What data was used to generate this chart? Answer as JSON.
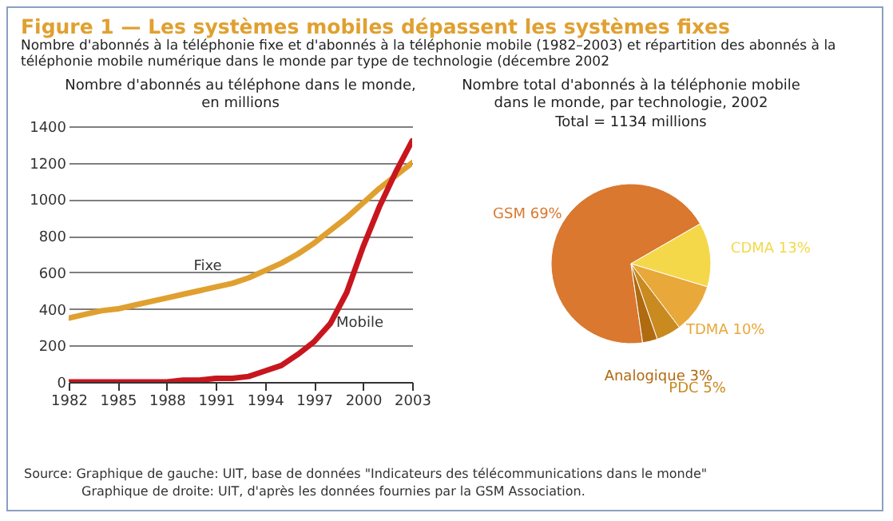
{
  "chart_data": [
    {
      "type": "line",
      "title": "Nombre d'abonnés au téléphone dans le monde, en millions",
      "annotations": [
        "Figure 1 — Les systèmes mobiles dépassent les systèmes fixes",
        "Nombre d'abonnés à la téléphonie fixe et d'abonnés à la téléphonie mobile (1982–2003) et répartition des abonnés à la téléphonie mobile numérique dans le monde par type de technologie (décembre 2002"
      ],
      "x": [
        1982,
        1983,
        1984,
        1985,
        1986,
        1987,
        1988,
        1989,
        1990,
        1991,
        1992,
        1993,
        1994,
        1995,
        1996,
        1997,
        1998,
        1999,
        2000,
        2001,
        2002,
        2003
      ],
      "series": [
        {
          "name": "Fixe",
          "color": "#e0a030",
          "values": [
            350,
            370,
            390,
            400,
            420,
            440,
            460,
            480,
            500,
            520,
            540,
            570,
            610,
            650,
            700,
            760,
            830,
            900,
            980,
            1060,
            1130,
            1200
          ]
        },
        {
          "name": "Mobile",
          "color": "#c8161e",
          "values": [
            0,
            0,
            0,
            0,
            0,
            0,
            0,
            10,
            10,
            20,
            20,
            30,
            60,
            90,
            150,
            220,
            320,
            490,
            740,
            960,
            1150,
            1320
          ]
        }
      ],
      "xlim": [
        1982,
        2003
      ],
      "xticks": [
        1982,
        1985,
        1988,
        1991,
        1994,
        1997,
        2000,
        2003
      ],
      "ylim": [
        0,
        1400
      ],
      "yticks": [
        0,
        200,
        400,
        600,
        800,
        1000,
        1200,
        1400
      ],
      "grid": "y",
      "legend": false
    },
    {
      "type": "pie",
      "title": "Nombre total d'abonnés à la téléphonie mobile dans le monde, par technologie, 2002",
      "subtitle": "Total = 1134 millions",
      "categories": [
        "GSM",
        "CDMA",
        "TDMA",
        "PDC",
        "Analogique"
      ],
      "values": [
        69,
        13,
        10,
        5,
        3
      ],
      "value_labels": [
        "69%",
        "13%",
        "10%",
        "5%",
        "3%"
      ],
      "colors": [
        "#d9782e",
        "#f5d84a",
        "#e8a83a",
        "#c98a20",
        "#b06a10"
      ],
      "annotations": [
        "Source:  Graphique de gauche:  UIT, base de données \"Indicateurs des télécommunications dans le monde\"",
        "Graphique de droite:  UIT, d'après les données fournies par la GSM Association."
      ]
    }
  ]
}
